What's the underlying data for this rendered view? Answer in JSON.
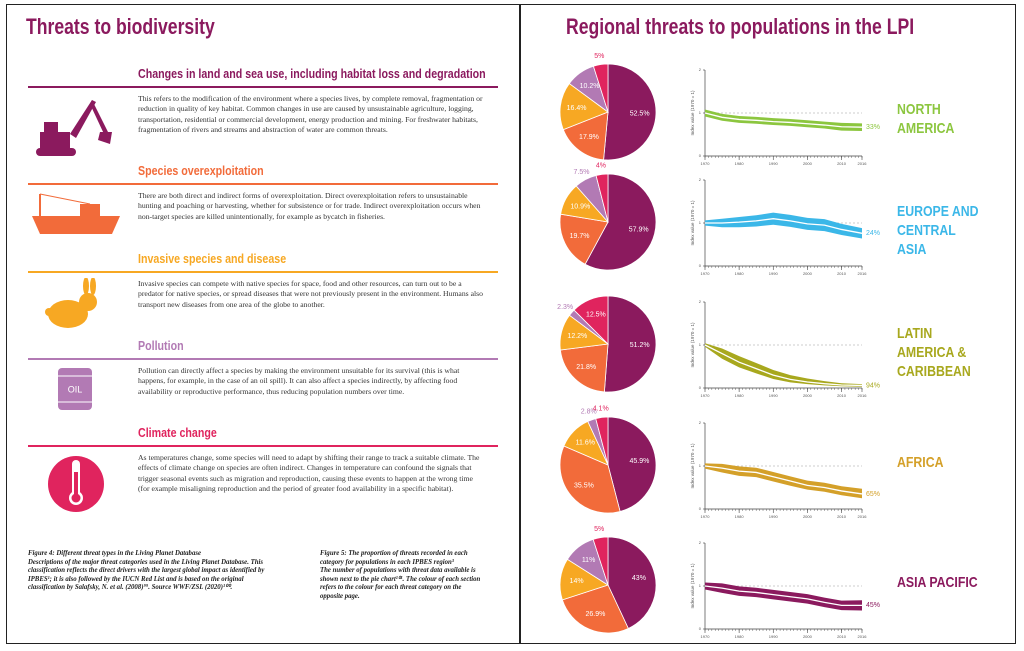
{
  "left_page": {
    "title": "Threats to biodiversity",
    "sections": [
      {
        "heading": "Changes in land and sea use, including habitat loss and degradation",
        "body": "This refers to the modification of the environment where a species lives, by complete removal, fragmentation or reduction in quality of key habitat. Common changes in use are caused by unsustainable agriculture, logging, transportation, residential or commercial development, energy production and mining. For freshwater habitats, fragmentation of rivers and streams and abstraction of water are common threats."
      },
      {
        "heading": "Species overexploitation",
        "body": "There are both direct and indirect forms of overexploitation. Direct overexploitation refers to unsustainable hunting and poaching or harvesting, whether for subsistence or for trade. Indirect overexploitation occurs when non-target species are killed unintentionally, for example as bycatch in fisheries."
      },
      {
        "heading": "Invasive species and disease",
        "body": "Invasive species can compete with native species for space, food and other resources, can turn out to be a predator for native species, or spread diseases that were not previously present in the environment. Humans also transport new diseases from one area of the globe to another."
      },
      {
        "heading": "Pollution",
        "body": "Pollution can directly affect a species by making the environment unsuitable for its survival (this is what happens, for example, in the case of an oil spill). It can also affect a species indirectly, by affecting food availability or reproductive performance, thus reducing population numbers over time.",
        "icon_label": "OIL"
      },
      {
        "heading": "Climate change",
        "body": "As temperatures change, some species will need to adapt by shifting their range to track a suitable climate. The effects of climate change on species are often indirect. Changes in temperature can confound the signals that trigger seasonal events such as migration and reproduction, causing these events to happen at the wrong time (for example misaligning reproduction and the period of greater food availability in a specific habitat)."
      }
    ],
    "caption_4": {
      "title": "Figure 4: Different threat types in the Living Planet Database",
      "body": "Descriptions of the major threat categories used in the Living Planet Database. This classification reflects the direct drivers with the largest global impact as identified by IPBES¹; it is also followed by the IUCN Red List and is based on the original classification by Salafsky, N. et al. (2008)⁹⁹. Source WWF/ZSL (2020)¹⁰⁰."
    },
    "caption_5": {
      "title": "Figure 5: The proportion of threats recorded in each category for populations in each IPBES region³",
      "body": "The number of populations with threat data available is shown next to the pie chart¹⁰¹. The colour of each section refers to the colour for each threat category on the opposite page."
    }
  },
  "right_page": {
    "title": "Regional threats to populations in the LPI"
  },
  "chart_data": [
    {
      "type": "pie",
      "values": [
        52.5,
        17.9,
        16.4,
        10.2,
        5
      ],
      "value_labels": [
        "52.5%",
        "17.9%",
        "16.4%",
        "10.2%",
        "5%"
      ],
      "colors": [
        "#8b1a5e",
        "#f26b3a",
        "#f7a823",
        "#b27ab4",
        "#e0245e"
      ]
    },
    {
      "type": "line",
      "region": "NORTH AMERICA",
      "y_label": "Index value (1970 = 1)",
      "x": [
        1970,
        1975,
        1980,
        1985,
        1990,
        1995,
        2000,
        2005,
        2010,
        2016
      ],
      "xlim": [
        1970,
        2016
      ],
      "xticks": [
        1970,
        1980,
        1990,
        2000,
        2010,
        2016
      ],
      "ylim": [
        0,
        2
      ],
      "yticks": [
        0,
        1,
        2
      ],
      "baseline": 1,
      "series": [
        {
          "color": "#8cc63f",
          "values": [
            1,
            0.9,
            0.85,
            0.83,
            0.8,
            0.78,
            0.75,
            0.72,
            0.68,
            0.67
          ],
          "upper": [
            1.08,
            0.98,
            0.93,
            0.91,
            0.88,
            0.86,
            0.83,
            0.8,
            0.77,
            0.76
          ],
          "lower": [
            0.92,
            0.82,
            0.77,
            0.75,
            0.72,
            0.7,
            0.67,
            0.64,
            0.59,
            0.58
          ]
        }
      ],
      "end_value": 33,
      "end_label": "33%"
    },
    {
      "type": "pie",
      "values": [
        57.9,
        19.7,
        10.9,
        7.5,
        4
      ],
      "value_labels": [
        "57.9%",
        "19.7%",
        "10.9%",
        "7.5%",
        "4%"
      ],
      "colors": [
        "#8b1a5e",
        "#f26b3a",
        "#f7a823",
        "#b27ab4",
        "#e0245e"
      ]
    },
    {
      "type": "line",
      "region": "EUROPE AND CENTRAL ASIA",
      "y_label": "Index value (1970 = 1)",
      "x": [
        1970,
        1975,
        1980,
        1985,
        1990,
        1995,
        2000,
        2005,
        2010,
        2016
      ],
      "xlim": [
        1970,
        2016
      ],
      "xticks": [
        1970,
        1980,
        1990,
        2000,
        2010,
        2016
      ],
      "ylim": [
        0,
        2
      ],
      "yticks": [
        0,
        1,
        2
      ],
      "baseline": 1,
      "series": [
        {
          "color": "#3bb7e8",
          "values": [
            1,
            1,
            1.02,
            1.05,
            1.1,
            1.05,
            0.98,
            0.95,
            0.85,
            0.76
          ],
          "upper": [
            1.06,
            1.1,
            1.14,
            1.18,
            1.24,
            1.19,
            1.12,
            1.09,
            0.98,
            0.88
          ],
          "lower": [
            0.94,
            0.9,
            0.9,
            0.92,
            0.96,
            0.91,
            0.84,
            0.81,
            0.72,
            0.64
          ]
        }
      ],
      "end_value": 24,
      "end_label": "24%"
    },
    {
      "type": "pie",
      "values": [
        51.2,
        21.8,
        12.2,
        2.3,
        12.5
      ],
      "value_labels": [
        "51.2%",
        "21.8%",
        "12.2%",
        "2.3%",
        "12.5%"
      ],
      "colors": [
        "#8b1a5e",
        "#f26b3a",
        "#f7a823",
        "#b27ab4",
        "#e0245e"
      ]
    },
    {
      "type": "line",
      "region": "LATIN AMERICA & CARIBBEAN",
      "y_label": "Index value (1970 = 1)",
      "x": [
        1970,
        1975,
        1980,
        1985,
        1990,
        1995,
        2000,
        2005,
        2010,
        2016
      ],
      "xlim": [
        1970,
        2016
      ],
      "xticks": [
        1970,
        1980,
        1990,
        2000,
        2010,
        2016
      ],
      "ylim": [
        0,
        2
      ],
      "yticks": [
        0,
        1,
        2
      ],
      "baseline": 1,
      "series": [
        {
          "color": "#a8a81e",
          "values": [
            1,
            0.8,
            0.6,
            0.45,
            0.3,
            0.2,
            0.14,
            0.1,
            0.07,
            0.06
          ],
          "upper": [
            1.04,
            0.92,
            0.74,
            0.58,
            0.42,
            0.3,
            0.22,
            0.16,
            0.11,
            0.09
          ],
          "lower": [
            0.96,
            0.68,
            0.48,
            0.34,
            0.21,
            0.13,
            0.09,
            0.06,
            0.04,
            0.03
          ]
        }
      ],
      "end_value": 94,
      "end_label": "94%"
    },
    {
      "type": "pie",
      "values": [
        45.9,
        35.5,
        11.6,
        2.8,
        4.1
      ],
      "value_labels": [
        "45.9%",
        "35.5%",
        "11.6%",
        "2.8%",
        "4.1%"
      ],
      "colors": [
        "#8b1a5e",
        "#f26b3a",
        "#f7a823",
        "#b27ab4",
        "#e0245e"
      ]
    },
    {
      "type": "line",
      "region": "AFRICA",
      "y_label": "Index value (1970 = 1)",
      "x": [
        1970,
        1975,
        1980,
        1985,
        1990,
        1995,
        2000,
        2005,
        2010,
        2016
      ],
      "xlim": [
        1970,
        2016
      ],
      "xticks": [
        1970,
        1980,
        1990,
        2000,
        2010,
        2016
      ],
      "ylim": [
        0,
        2
      ],
      "yticks": [
        0,
        1,
        2
      ],
      "baseline": 1,
      "series": [
        {
          "color": "#d4a029",
          "values": [
            1,
            0.95,
            0.88,
            0.85,
            0.75,
            0.65,
            0.55,
            0.5,
            0.42,
            0.35
          ],
          "upper": [
            1.06,
            1.05,
            0.99,
            0.96,
            0.86,
            0.76,
            0.66,
            0.61,
            0.53,
            0.47
          ],
          "lower": [
            0.94,
            0.85,
            0.77,
            0.74,
            0.64,
            0.54,
            0.45,
            0.4,
            0.32,
            0.25
          ]
        }
      ],
      "end_value": 65,
      "end_label": "65%"
    },
    {
      "type": "pie",
      "values": [
        43,
        26.9,
        14,
        11,
        5
      ],
      "value_labels": [
        "43%",
        "26.9%",
        "14%",
        "11%",
        "5%"
      ],
      "colors": [
        "#8b1a5e",
        "#f26b3a",
        "#f7a823",
        "#b27ab4",
        "#e0245e"
      ]
    },
    {
      "type": "line",
      "region": "ASIA PACIFIC",
      "y_label": "Index value (1970 = 1)",
      "x": [
        1970,
        1975,
        1980,
        1985,
        1990,
        1995,
        2000,
        2005,
        2010,
        2016
      ],
      "xlim": [
        1970,
        2016
      ],
      "xticks": [
        1970,
        1980,
        1990,
        2000,
        2010,
        2016
      ],
      "ylim": [
        0,
        2
      ],
      "yticks": [
        0,
        1,
        2
      ],
      "baseline": 1,
      "series": [
        {
          "color": "#8b1a5e",
          "values": [
            1,
            0.95,
            0.88,
            0.85,
            0.8,
            0.75,
            0.7,
            0.62,
            0.55,
            0.55
          ],
          "upper": [
            1.08,
            1.06,
            0.99,
            0.96,
            0.91,
            0.86,
            0.81,
            0.73,
            0.66,
            0.67
          ],
          "lower": [
            0.92,
            0.84,
            0.77,
            0.74,
            0.69,
            0.64,
            0.59,
            0.51,
            0.44,
            0.43
          ]
        }
      ],
      "end_value": 45,
      "end_label": "45%"
    }
  ]
}
